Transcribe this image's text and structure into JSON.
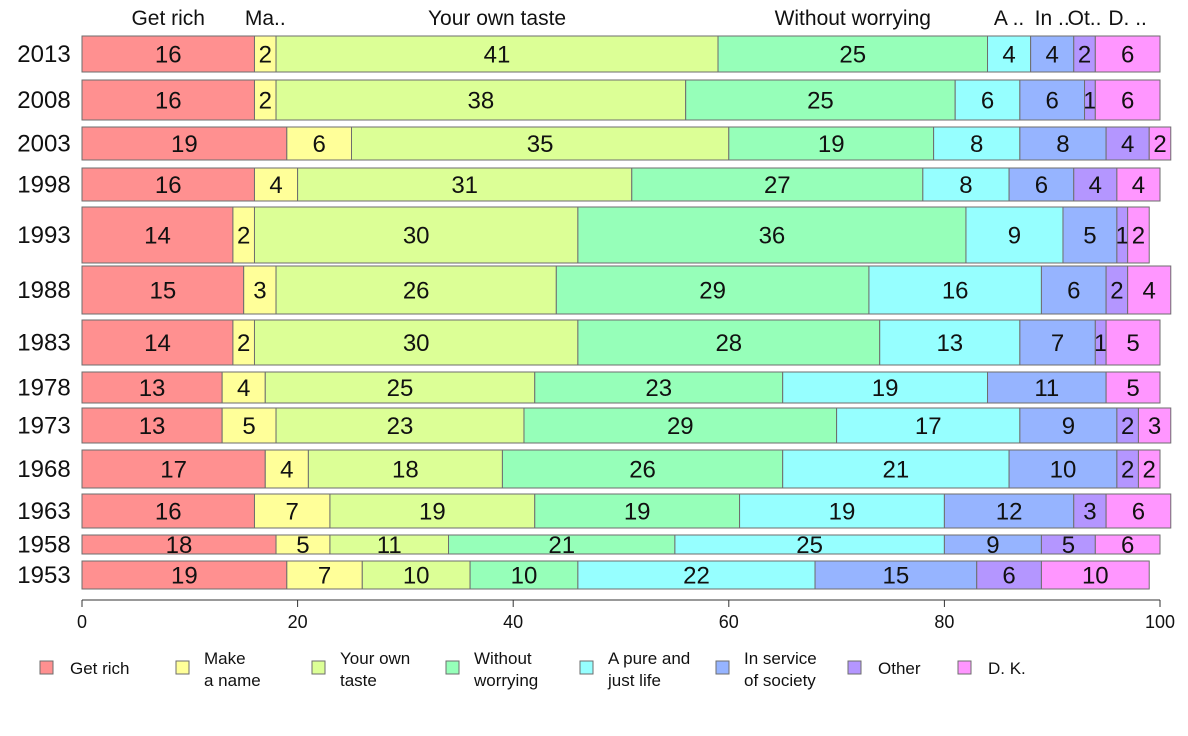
{
  "chart_data": {
    "type": "bar",
    "orientation": "horizontal-stacked",
    "xlim": [
      0,
      100
    ],
    "xticks": [
      0,
      20,
      40,
      60,
      80,
      100
    ],
    "categories": [
      "2013",
      "2008",
      "2003",
      "1998",
      "1993",
      "1988",
      "1983",
      "1978",
      "1973",
      "1968",
      "1963",
      "1958",
      "1953"
    ],
    "series": [
      {
        "name": "Get rich",
        "legend": [
          "Get rich"
        ],
        "top_label": "Get rich",
        "color": "#ff9090",
        "values": [
          16,
          16,
          19,
          16,
          14,
          15,
          14,
          13,
          13,
          17,
          16,
          18,
          19
        ]
      },
      {
        "name": "Make a name",
        "legend": [
          "Make",
          "a name"
        ],
        "top_label": "Ma..",
        "color": "#ffff99",
        "values": [
          2,
          2,
          6,
          4,
          2,
          3,
          2,
          4,
          5,
          4,
          7,
          5,
          7
        ]
      },
      {
        "name": "Your own taste",
        "legend": [
          "Your own",
          "taste"
        ],
        "top_label": "Your own taste",
        "color": "#dcff96",
        "values": [
          41,
          38,
          35,
          31,
          30,
          26,
          30,
          25,
          23,
          18,
          19,
          11,
          10
        ]
      },
      {
        "name": "Without worrying",
        "legend": [
          "Without",
          "worrying"
        ],
        "top_label": "Without worrying",
        "color": "#96ffb9",
        "values": [
          25,
          25,
          19,
          27,
          36,
          29,
          28,
          23,
          29,
          26,
          19,
          21,
          10
        ]
      },
      {
        "name": "A pure and just life",
        "legend": [
          "A pure and",
          "just life"
        ],
        "top_label": "A ..",
        "color": "#96ffff",
        "values": [
          4,
          6,
          8,
          8,
          9,
          16,
          13,
          19,
          17,
          21,
          19,
          25,
          22
        ]
      },
      {
        "name": "In service of society",
        "legend": [
          "In service",
          "of society"
        ],
        "top_label": "In ..",
        "color": "#96b4ff",
        "values": [
          4,
          6,
          8,
          6,
          5,
          6,
          7,
          11,
          9,
          10,
          12,
          9,
          15
        ]
      },
      {
        "name": "Other",
        "legend": [
          "Other"
        ],
        "top_label": "Ot..",
        "color": "#b496ff",
        "values": [
          2,
          1,
          4,
          4,
          1,
          2,
          1,
          0,
          2,
          2,
          3,
          5,
          6
        ]
      },
      {
        "name": "D. K.",
        "legend": [
          "D. K."
        ],
        "top_label": "D. ..",
        "color": "#ff96ff",
        "values": [
          6,
          6,
          2,
          4,
          2,
          4,
          5,
          5,
          3,
          2,
          6,
          6,
          10
        ]
      }
    ]
  }
}
